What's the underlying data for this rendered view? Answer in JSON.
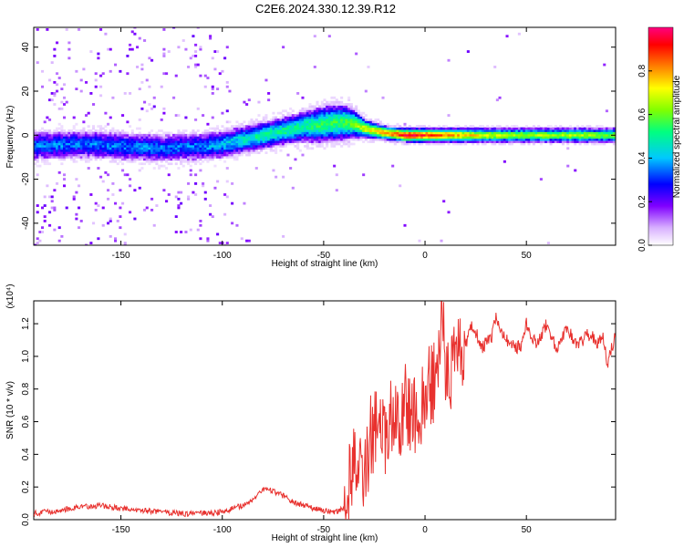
{
  "title": "C2E6.2024.330.12.39.R12",
  "colors": {
    "snr_line": "#e8312e",
    "axis": "#000000",
    "colorbar": [
      "#ffffff",
      "#d8b0ff",
      "#8000ff",
      "#0000ff",
      "#00c8ff",
      "#00ff80",
      "#80ff00",
      "#ffff00",
      "#ff8000",
      "#ff0000",
      "#ff0080"
    ]
  },
  "chart_data": [
    {
      "type": "heatmap",
      "xlabel": "Height of straight line (km)",
      "ylabel": "Frequency (Hz)",
      "xlim": [
        -193,
        94
      ],
      "ylim": [
        -50,
        49
      ],
      "xticks": [
        -150,
        -100,
        -50,
        0,
        50
      ],
      "yticks": [
        -40,
        -20,
        0,
        20,
        40
      ],
      "xtick_labels": [
        "-150",
        "-100",
        "-50",
        "0",
        "50"
      ],
      "ytick_labels": [
        "-40",
        "-20",
        "0",
        "20",
        "40"
      ],
      "ridge": {
        "x": [
          -193,
          -170,
          -150,
          -130,
          -110,
          -100,
          -90,
          -80,
          -70,
          -60,
          -50,
          -40,
          -35,
          -30,
          -20,
          -10,
          0,
          20,
          40,
          60,
          80,
          94
        ],
        "y": [
          -5,
          -4,
          -5,
          -6,
          -5,
          -4,
          -2,
          0,
          2,
          4,
          5,
          6,
          5,
          3,
          1,
          0,
          0,
          0,
          0,
          0,
          0,
          0
        ],
        "width_hz": [
          6,
          6,
          6,
          6,
          6,
          6,
          6,
          6,
          6,
          7,
          8,
          8,
          6,
          4,
          3,
          3,
          3,
          3,
          3,
          3,
          3,
          3
        ],
        "amplitude": [
          0.35,
          0.35,
          0.35,
          0.35,
          0.35,
          0.4,
          0.45,
          0.5,
          0.5,
          0.5,
          0.55,
          0.55,
          0.6,
          0.7,
          0.8,
          0.95,
          0.9,
          0.75,
          0.65,
          0.65,
          0.65,
          0.6
        ]
      },
      "colorbar": {
        "label": "Normalized spectral amplitude",
        "range": [
          0,
          1
        ],
        "ticks": [
          0.0,
          0.2,
          0.4,
          0.6,
          0.8
        ],
        "tick_labels": [
          "0.0",
          "0.2",
          "0.4",
          "0.6",
          "0.8"
        ]
      }
    },
    {
      "type": "line",
      "xlabel": "Height of straight line (km)",
      "ylabel": "SNR (10 * v/v)",
      "y_multiplier": "(x10⁴)",
      "xlim": [
        -193,
        94
      ],
      "ylim": [
        0,
        1.34
      ],
      "xticks": [
        -150,
        -100,
        -50,
        0,
        50
      ],
      "yticks": [
        0.0,
        0.2,
        0.4,
        0.6,
        0.8,
        1.0,
        1.2
      ],
      "xtick_labels": [
        "-150",
        "-100",
        "-50",
        "0",
        "50"
      ],
      "ytick_labels": [
        "0.0",
        "0.2",
        "0.4",
        "0.6",
        "0.8",
        "1.0",
        "1.2"
      ],
      "series": [
        {
          "x": [
            -193,
            -180,
            -170,
            -160,
            -150,
            -140,
            -130,
            -120,
            -110,
            -100,
            -90,
            -85,
            -80,
            -75,
            -70,
            -65,
            -60,
            -55,
            -50,
            -45,
            -40,
            -38,
            -35,
            -32,
            -30,
            -27,
            -25,
            -22,
            -20,
            -17,
            -15,
            -12,
            -10,
            -7,
            -5,
            -2,
            0,
            3,
            5,
            7,
            8,
            10,
            13,
            15,
            18,
            20,
            22,
            25,
            28,
            30,
            33,
            35,
            38,
            40,
            43,
            45,
            48,
            50,
            53,
            55,
            58,
            60,
            63,
            65,
            68,
            70,
            73,
            75,
            78,
            80,
            83,
            85,
            88,
            90,
            92,
            94
          ],
          "y": [
            0.03,
            0.05,
            0.07,
            0.08,
            0.06,
            0.05,
            0.04,
            0.03,
            0.03,
            0.04,
            0.08,
            0.12,
            0.18,
            0.17,
            0.14,
            0.1,
            0.08,
            0.06,
            0.05,
            0.04,
            0.06,
            0.2,
            0.35,
            0.4,
            0.3,
            0.5,
            0.55,
            0.6,
            0.45,
            0.7,
            0.55,
            0.62,
            0.7,
            0.68,
            0.62,
            0.65,
            0.8,
            0.85,
            0.82,
            0.95,
            1.3,
            0.95,
            0.9,
            0.98,
            1.0,
            1.05,
            1.2,
            1.15,
            1.05,
            1.08,
            1.12,
            1.25,
            1.15,
            1.1,
            1.08,
            1.05,
            1.07,
            1.2,
            1.12,
            1.08,
            1.15,
            1.2,
            1.1,
            1.06,
            1.12,
            1.18,
            1.1,
            1.06,
            1.1,
            1.14,
            1.12,
            1.08,
            1.12,
            0.95,
            1.05,
            1.12
          ]
        }
      ]
    }
  ]
}
